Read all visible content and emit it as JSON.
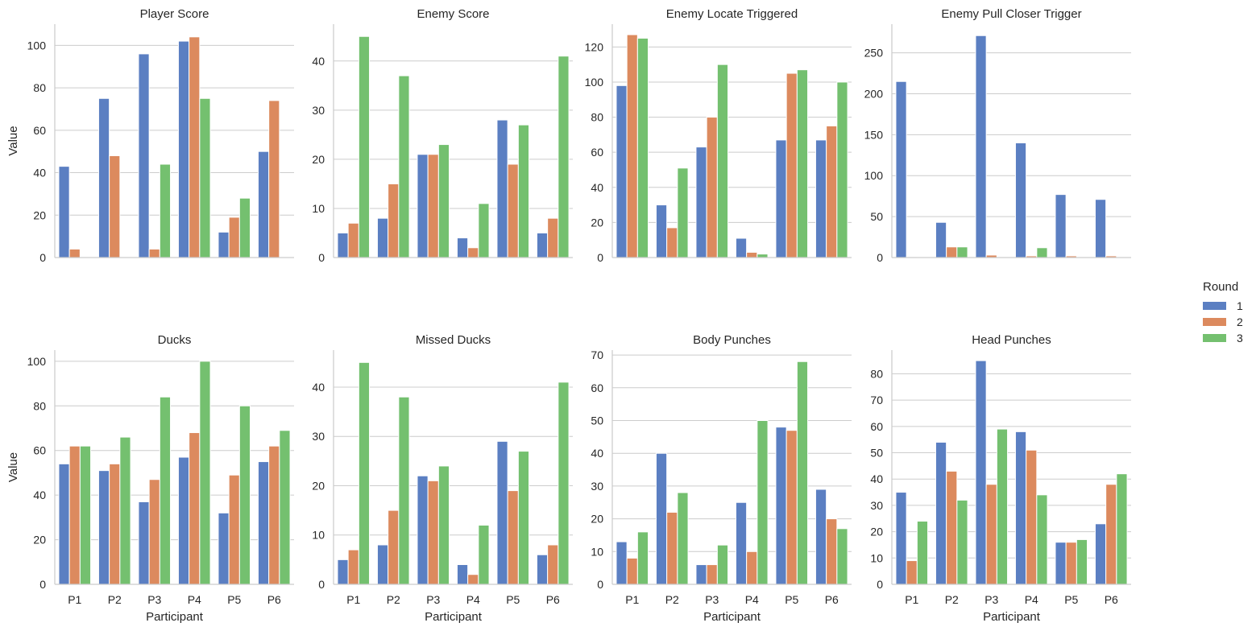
{
  "chart_data": {
    "type": "bar",
    "figure_kind": "faceted grouped bar chart (2 rows x 4 columns)",
    "categories": [
      "P1",
      "P2",
      "P3",
      "P4",
      "P5",
      "P6"
    ],
    "xlabel": "Participant",
    "ylabel": "Value",
    "legend": {
      "title": "Round",
      "placement": "right",
      "entries": [
        {
          "label": "1",
          "color": "#5b7fc2"
        },
        {
          "label": "2",
          "color": "#dc8a5e"
        },
        {
          "label": "3",
          "color": "#74c06f"
        }
      ]
    },
    "grid": "horizontal",
    "panels": [
      {
        "title": "Player Score",
        "ylim": [
          0,
          110
        ],
        "yticks": [
          0,
          20,
          40,
          60,
          80,
          100
        ],
        "series": [
          {
            "name": "1",
            "values": [
              43,
              75,
              96,
              102,
              12,
              50
            ]
          },
          {
            "name": "2",
            "values": [
              4,
              48,
              4,
              104,
              19,
              74
            ]
          },
          {
            "name": "3",
            "values": [
              0,
              0,
              44,
              75,
              28,
              0
            ]
          }
        ]
      },
      {
        "title": "Enemy Score",
        "ylim": [
          0,
          47.5
        ],
        "yticks": [
          0,
          10,
          20,
          30,
          40
        ],
        "series": [
          {
            "name": "1",
            "values": [
              5,
              8,
              21,
              4,
              28,
              5
            ]
          },
          {
            "name": "2",
            "values": [
              7,
              15,
              21,
              2,
              19,
              8
            ]
          },
          {
            "name": "3",
            "values": [
              45,
              37,
              23,
              11,
              27,
              41
            ]
          }
        ]
      },
      {
        "title": "Enemy Locate Triggered",
        "ylim": [
          0,
          133
        ],
        "yticks": [
          0,
          20,
          40,
          60,
          80,
          100,
          120
        ],
        "series": [
          {
            "name": "1",
            "values": [
              98,
              30,
              63,
              11,
              67,
              67
            ]
          },
          {
            "name": "2",
            "values": [
              127,
              17,
              80,
              3,
              105,
              75
            ]
          },
          {
            "name": "3",
            "values": [
              125,
              51,
              110,
              2,
              107,
              100
            ]
          }
        ]
      },
      {
        "title": "Enemy Pull Closer Trigger",
        "ylim": [
          0,
          285
        ],
        "yticks": [
          0,
          50,
          100,
          150,
          200,
          250
        ],
        "series": [
          {
            "name": "1",
            "values": [
              215,
              43,
              271,
              140,
              77,
              71
            ]
          },
          {
            "name": "2",
            "values": [
              1,
              13,
              3,
              2,
              2,
              2
            ]
          },
          {
            "name": "3",
            "values": [
              0,
              13,
              0,
              12,
              0,
              0
            ]
          }
        ]
      },
      {
        "title": "Ducks",
        "ylim": [
          0,
          105
        ],
        "yticks": [
          0,
          20,
          40,
          60,
          80,
          100
        ],
        "series": [
          {
            "name": "1",
            "values": [
              54,
              51,
              37,
              57,
              32,
              55
            ]
          },
          {
            "name": "2",
            "values": [
              62,
              54,
              47,
              68,
              49,
              62
            ]
          },
          {
            "name": "3",
            "values": [
              62,
              66,
              84,
              100,
              80,
              69
            ]
          }
        ]
      },
      {
        "title": "Missed Ducks",
        "ylim": [
          0,
          47.5
        ],
        "yticks": [
          0,
          10,
          20,
          30,
          40
        ],
        "series": [
          {
            "name": "1",
            "values": [
              5,
              8,
              22,
              4,
              29,
              6
            ]
          },
          {
            "name": "2",
            "values": [
              7,
              15,
              21,
              2,
              19,
              8
            ]
          },
          {
            "name": "3",
            "values": [
              45,
              38,
              24,
              12,
              27,
              41
            ]
          }
        ]
      },
      {
        "title": "Body Punches",
        "ylim": [
          0,
          71.5
        ],
        "yticks": [
          0,
          10,
          20,
          30,
          40,
          50,
          60,
          70
        ],
        "series": [
          {
            "name": "1",
            "values": [
              13,
              40,
              6,
              25,
              48,
              29
            ]
          },
          {
            "name": "2",
            "values": [
              8,
              22,
              6,
              10,
              47,
              20
            ]
          },
          {
            "name": "3",
            "values": [
              16,
              28,
              12,
              50,
              68,
              17
            ]
          }
        ]
      },
      {
        "title": "Head Punches",
        "ylim": [
          0,
          89
        ],
        "yticks": [
          0,
          10,
          20,
          30,
          40,
          50,
          60,
          70,
          80
        ],
        "series": [
          {
            "name": "1",
            "values": [
              35,
              54,
              85,
              58,
              16,
              23
            ]
          },
          {
            "name": "2",
            "values": [
              9,
              43,
              38,
              51,
              16,
              38
            ]
          },
          {
            "name": "3",
            "values": [
              24,
              32,
              59,
              34,
              17,
              42
            ]
          }
        ]
      }
    ]
  }
}
